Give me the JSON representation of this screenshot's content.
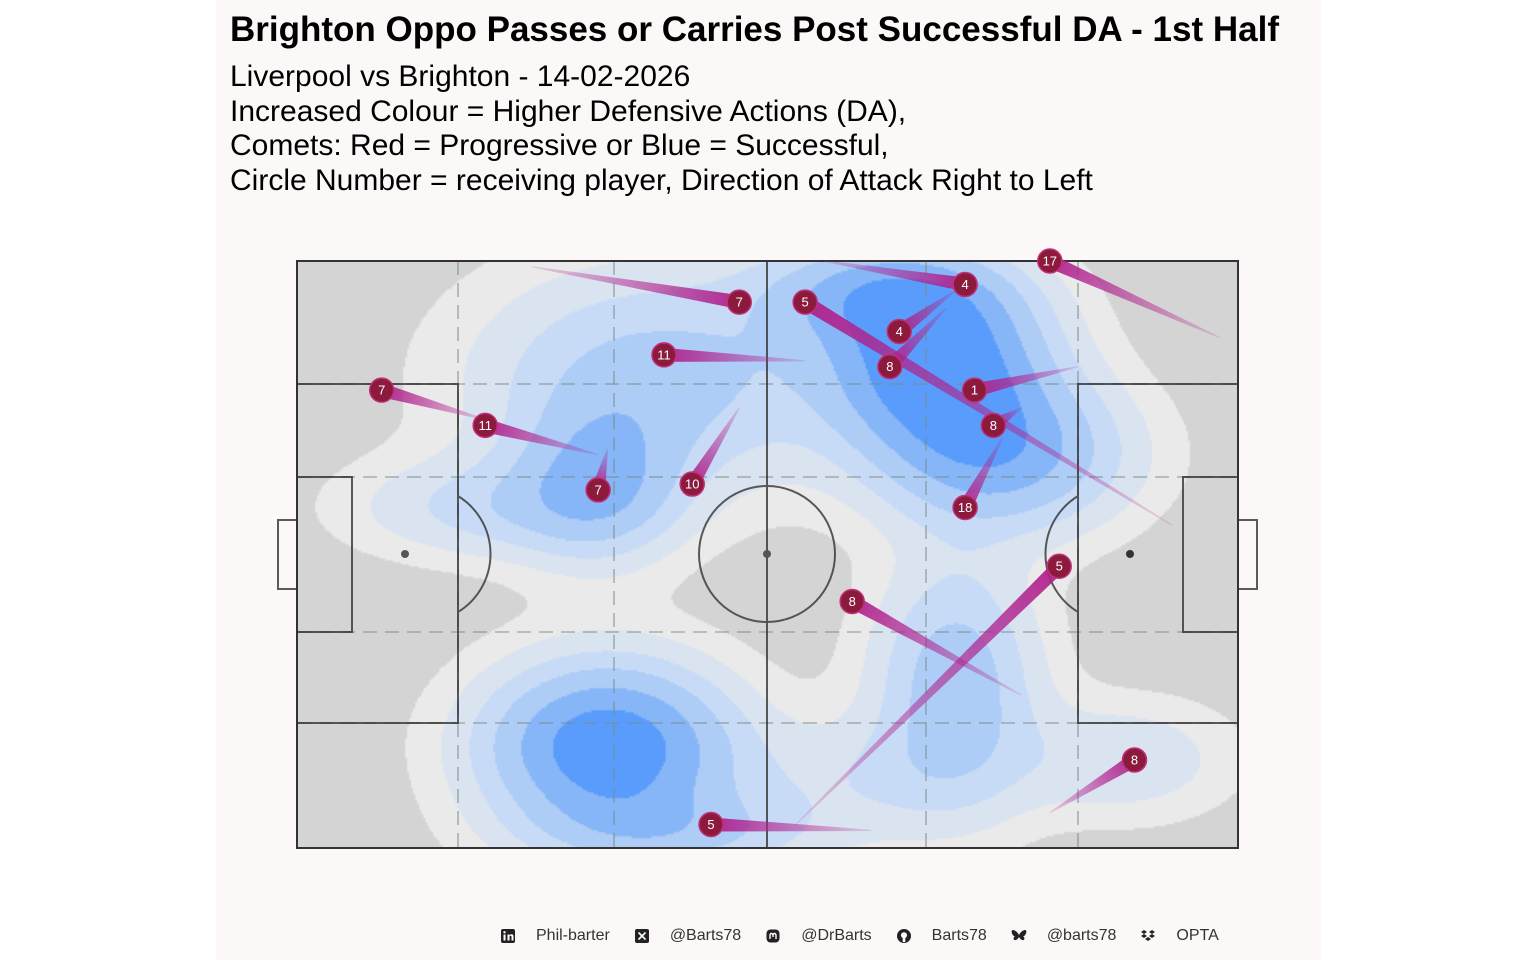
{
  "chart_data": {
    "type": "scatter",
    "title": "Brighton Oppo Passes or Carries Post Successful DA - 1st Half",
    "subtitle": [
      "Liverpool vs Brighton - 14-02-2026",
      "Increased Colour = Higher Defensive Actions (DA),",
      "Comets: Red = Progressive or Blue = Successful,",
      "Circle Number = receiving player, Direction of Attack Right to Left"
    ],
    "xlim": [
      0,
      100
    ],
    "ylim": [
      0,
      100
    ],
    "grid": false,
    "comet_color": "#b0208c",
    "marker_color": "#8b1a3c",
    "density_colors": [
      "#ffffff",
      "#dbe7f7",
      "#c6dbf8",
      "#a9cbf9",
      "#7fb3fb",
      "#4f97fe"
    ],
    "density_zones": [
      {
        "x": 38,
        "y": 80,
        "sx": 13,
        "sy": 13,
        "w": 1.0
      },
      {
        "x": 68,
        "y": 83,
        "sx": 8,
        "sy": 10,
        "w": 2.0
      },
      {
        "x": 75,
        "y": 67,
        "sx": 9,
        "sy": 9,
        "w": 1.4
      },
      {
        "x": 62,
        "y": 95,
        "sx": 9,
        "sy": 6,
        "w": 1.1
      },
      {
        "x": 33,
        "y": 17,
        "sx": 9,
        "sy": 10,
        "w": 2.1
      },
      {
        "x": 41,
        "y": 2,
        "sx": 11,
        "sy": 5,
        "w": 0.7
      },
      {
        "x": 70,
        "y": 28,
        "sx": 6,
        "sy": 14,
        "w": 1.1
      },
      {
        "x": 32,
        "y": 62,
        "sx": 6,
        "sy": 9,
        "w": 1.0
      },
      {
        "x": 20,
        "y": 58,
        "sx": 10,
        "sy": 6,
        "w": 0.6
      },
      {
        "x": 88,
        "y": 15,
        "sx": 8,
        "sy": 7,
        "w": 0.5
      },
      {
        "x": 60,
        "y": 12,
        "sx": 10,
        "sy": 7,
        "w": 0.4
      }
    ],
    "comets": [
      {
        "player": "7",
        "x": 47,
        "y": 93,
        "x_end": 25,
        "y_end": 99
      },
      {
        "player": "5",
        "x": 54,
        "y": 93,
        "x_end": 93,
        "y_end": 55
      },
      {
        "player": "4",
        "x": 71,
        "y": 96,
        "x_end": 56,
        "y_end": 100
      },
      {
        "player": "17",
        "x": 80,
        "y": 100,
        "x_end": 98,
        "y_end": 87
      },
      {
        "player": "4",
        "x": 64,
        "y": 88,
        "x_end": 70,
        "y_end": 95
      },
      {
        "player": "11",
        "x": 39,
        "y": 84,
        "x_end": 54,
        "y_end": 83
      },
      {
        "player": "8",
        "x": 63,
        "y": 82,
        "x_end": 69,
        "y_end": 92
      },
      {
        "player": "1",
        "x": 72,
        "y": 78,
        "x_end": 83,
        "y_end": 82
      },
      {
        "player": "7",
        "x": 9,
        "y": 78,
        "x_end": 20,
        "y_end": 73
      },
      {
        "player": "11",
        "x": 20,
        "y": 72,
        "x_end": 32,
        "y_end": 67
      },
      {
        "player": "8",
        "x": 74,
        "y": 72,
        "x_end": 77,
        "y_end": 75
      },
      {
        "player": "7",
        "x": 32,
        "y": 61,
        "x_end": 33,
        "y_end": 68
      },
      {
        "player": "10",
        "x": 42,
        "y": 62,
        "x_end": 47,
        "y_end": 75
      },
      {
        "player": "18",
        "x": 71,
        "y": 58,
        "x_end": 75,
        "y_end": 70
      },
      {
        "player": "5",
        "x": 81,
        "y": 48,
        "x_end": 53,
        "y_end": 4
      },
      {
        "player": "8",
        "x": 59,
        "y": 42,
        "x_end": 77,
        "y_end": 26
      },
      {
        "player": "8",
        "x": 89,
        "y": 15,
        "x_end": 80,
        "y_end": 6
      },
      {
        "player": "5",
        "x": 44,
        "y": 4,
        "x_end": 61,
        "y_end": 3
      }
    ]
  },
  "footer": {
    "items": [
      {
        "icon": "linkedin-icon",
        "label": "Phil-barter"
      },
      {
        "icon": "x-icon",
        "label": "@Barts78"
      },
      {
        "icon": "mastodon-icon",
        "label": "@DrBarts"
      },
      {
        "icon": "github-icon",
        "label": "Barts78"
      },
      {
        "icon": "bluesky-icon",
        "label": "@barts78"
      },
      {
        "icon": "dropbox-icon",
        "label": "OPTA"
      }
    ]
  }
}
